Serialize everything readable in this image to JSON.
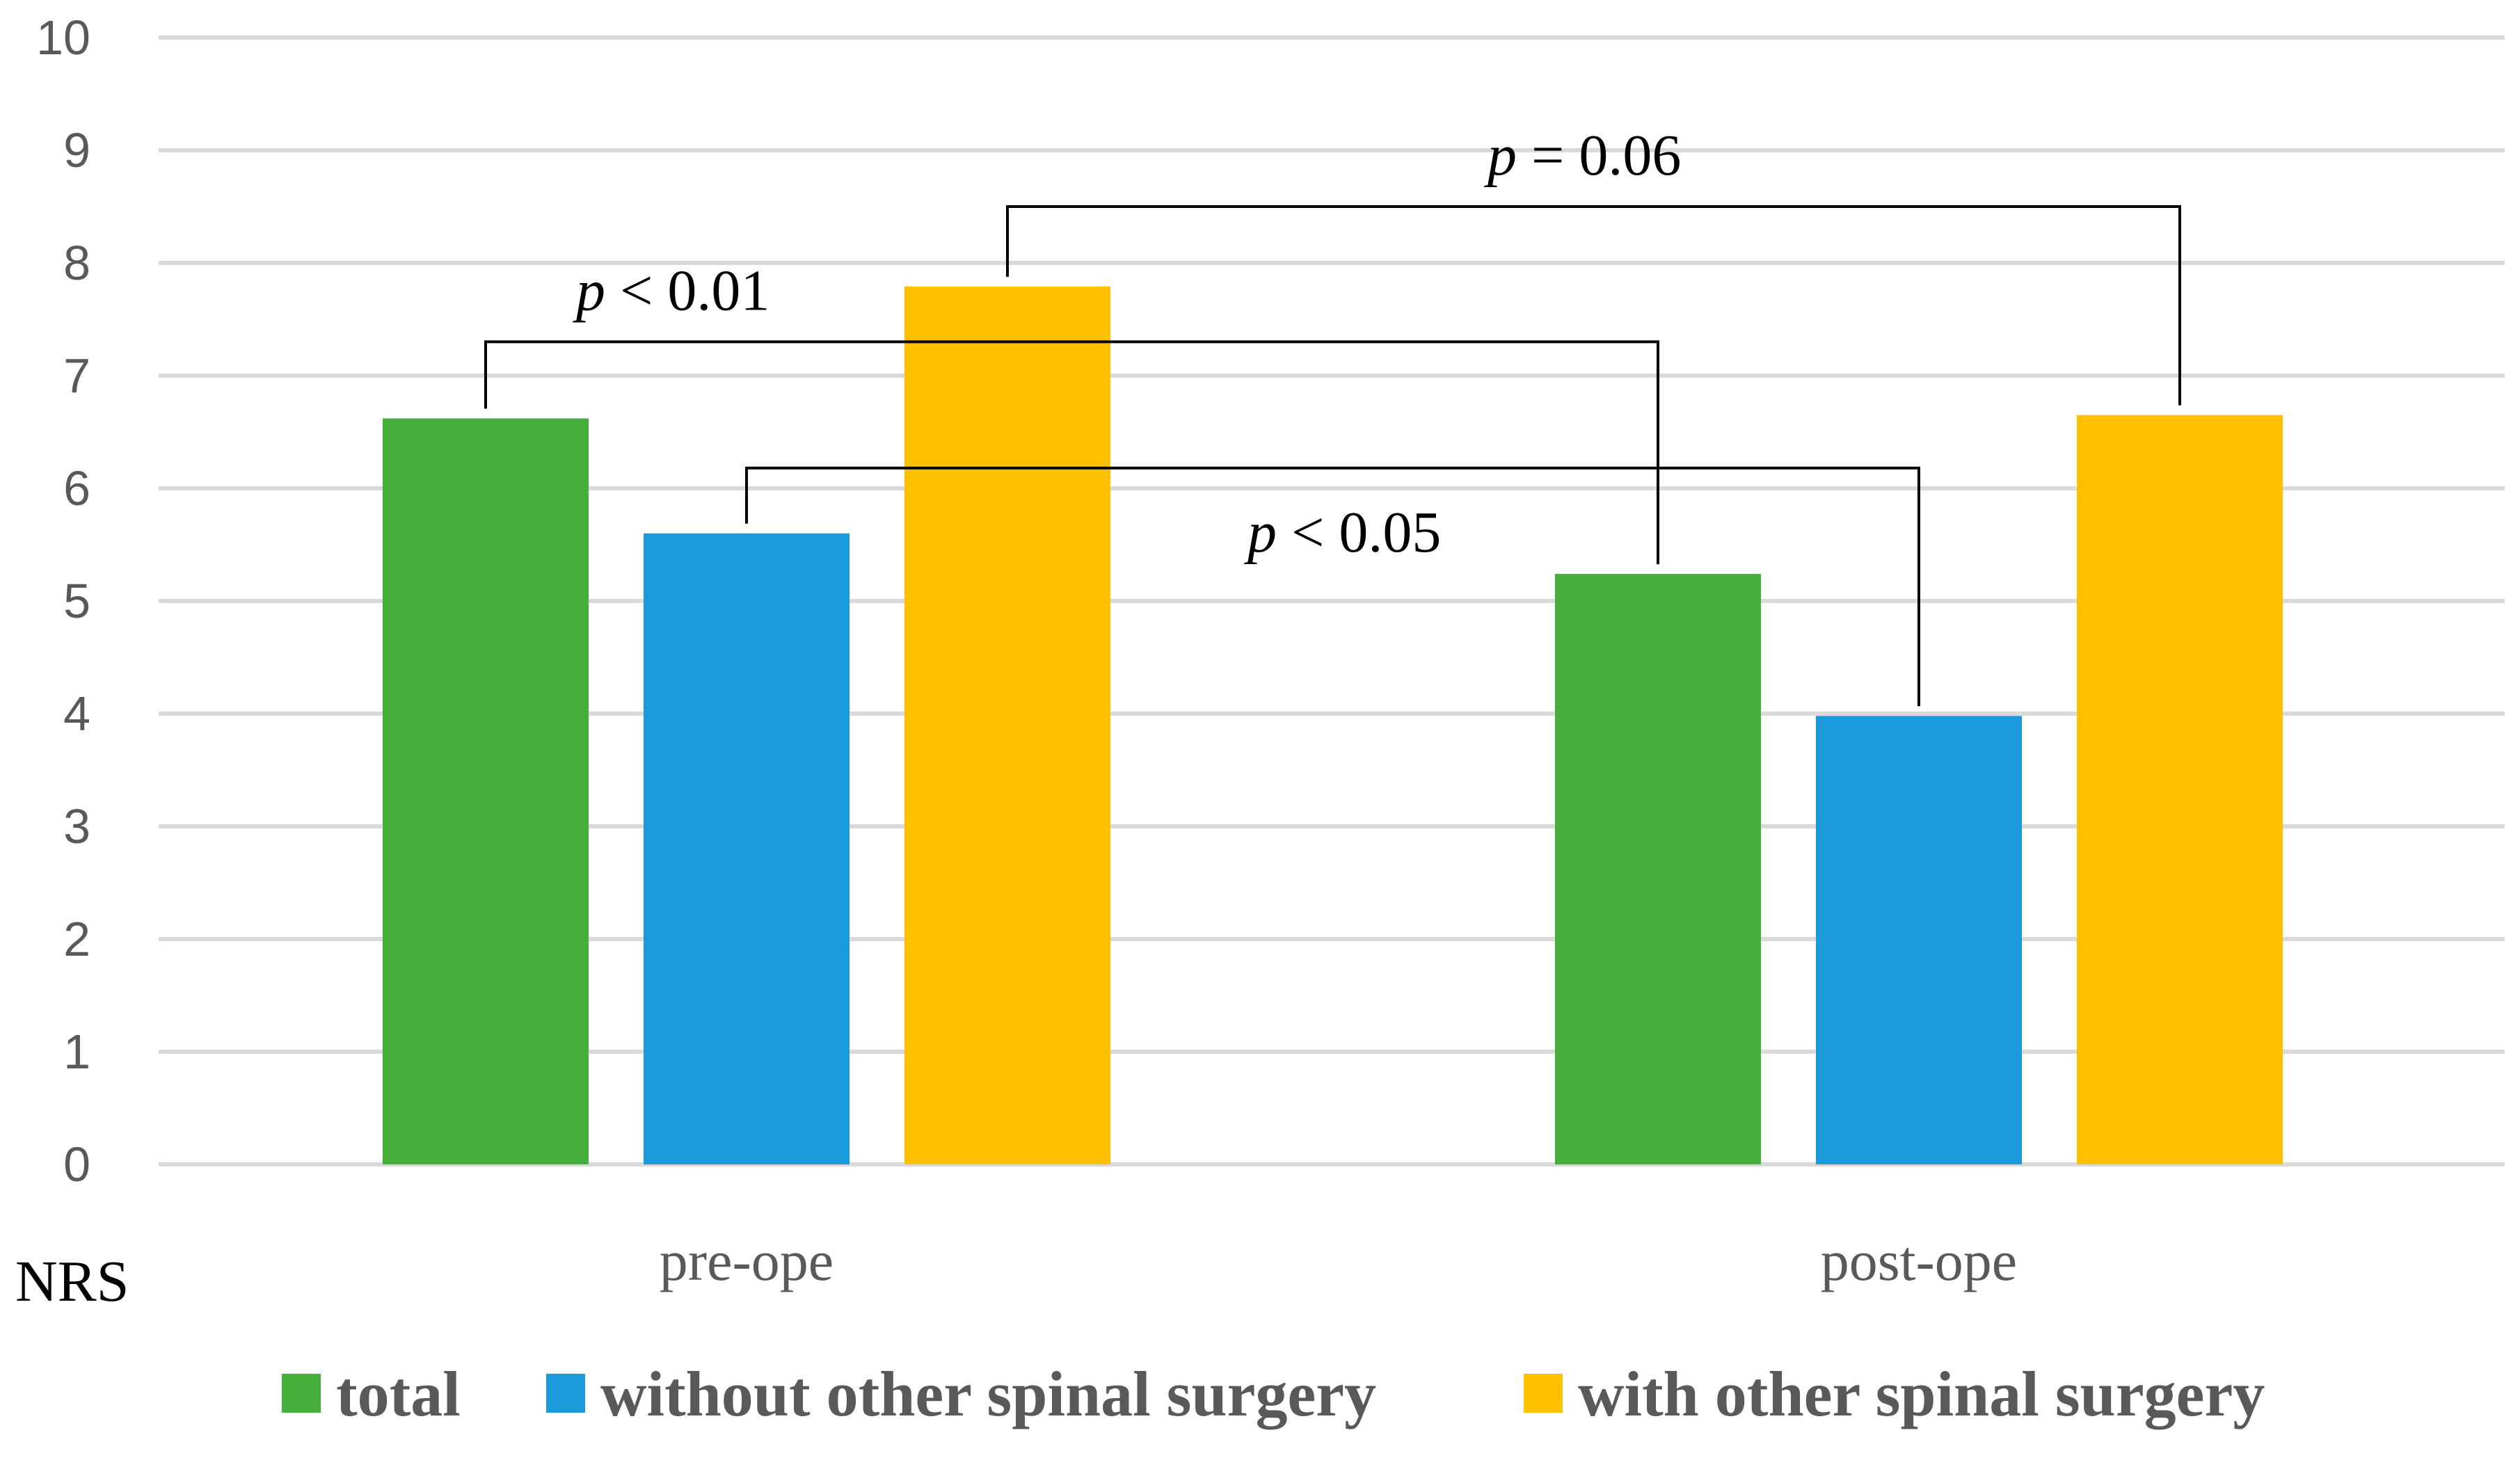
{
  "chart_data": {
    "type": "bar",
    "title": "",
    "xlabel": "",
    "ylabel": "NRS",
    "ylim": [
      0,
      10
    ],
    "yticks": [
      "0",
      "1",
      "2",
      "3",
      "4",
      "5",
      "6",
      "7",
      "8",
      "9",
      "10"
    ],
    "grid": true,
    "legend_position": "bottom",
    "categories": [
      "pre-ope",
      "post-ope"
    ],
    "series": [
      {
        "name": "total",
        "color": "#46AF3C",
        "values": [
          6.62,
          5.24
        ]
      },
      {
        "name": "without other spinal surgery",
        "color": "#1A9ADA",
        "values": [
          5.6,
          3.98
        ]
      },
      {
        "name": "with other spinal surgery",
        "color": "#FFC000",
        "values": [
          7.79,
          6.65
        ]
      }
    ],
    "annotations": [
      {
        "italic": "p",
        "rest": " < 0.01",
        "from": {
          "series": 0,
          "category": 0
        },
        "to": {
          "series": 0,
          "category": 1
        },
        "level": 7.3
      },
      {
        "italic": "p",
        "rest": " < 0.05",
        "from": {
          "series": 1,
          "category": 0
        },
        "to": {
          "series": 1,
          "category": 1
        },
        "level": 6.18
      },
      {
        "italic": "p",
        "rest": " = 0.06",
        "from": {
          "series": 2,
          "category": 0
        },
        "to": {
          "series": 2,
          "category": 1
        },
        "level": 8.5
      }
    ]
  }
}
